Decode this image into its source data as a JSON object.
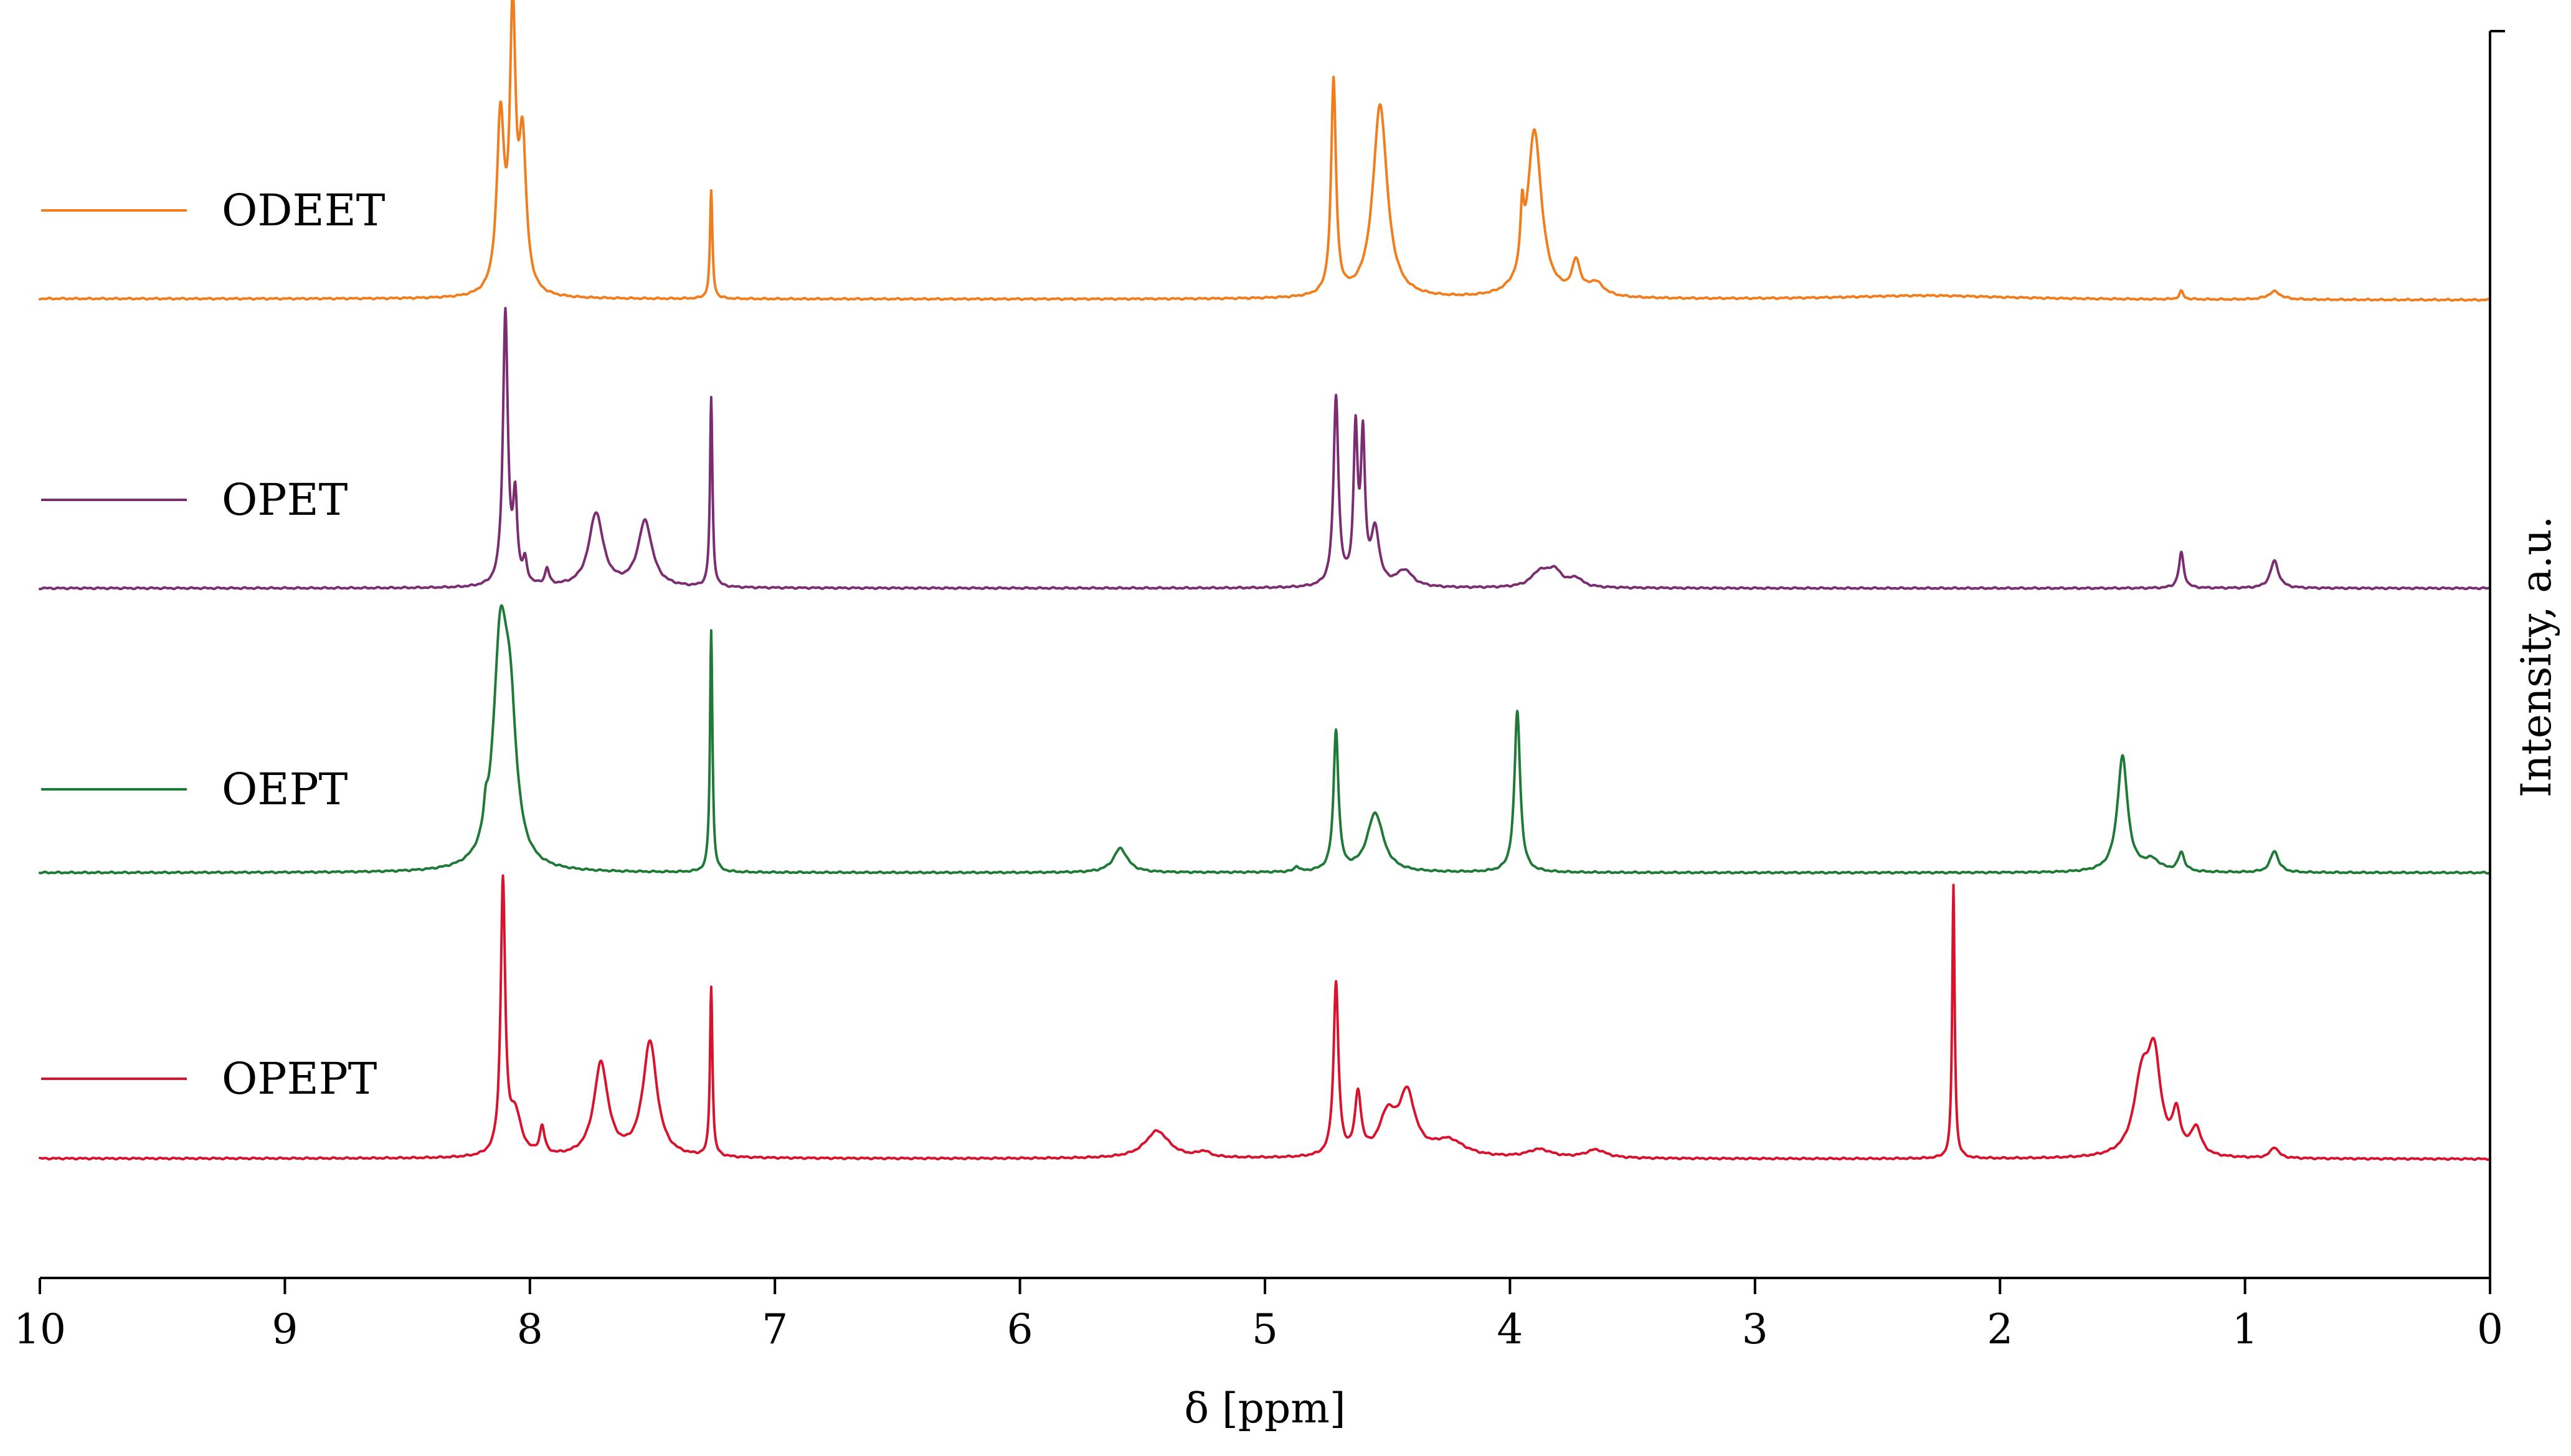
{
  "chart_data": {
    "type": "line",
    "title": "",
    "xlabel": "δ [ppm]",
    "ylabel": "Intensity, a.u.",
    "xlim": [
      10,
      0
    ],
    "x_reversed": true,
    "x_ticks": [
      "10",
      "9",
      "8",
      "7",
      "6",
      "5",
      "4",
      "3",
      "2",
      "1",
      "0"
    ],
    "y_ticks": [],
    "grid": false,
    "stacked_offset": true,
    "legend_position": "left, beside each trace",
    "series": [
      {
        "name": "ODEET",
        "color": "#f07d1e",
        "baseline_slope": 0.005,
        "peaks": [
          {
            "x": 8.12,
            "h": 0.64,
            "w": 0.018
          },
          {
            "x": 8.07,
            "h": 1.0,
            "w": 0.014
          },
          {
            "x": 8.03,
            "h": 0.54,
            "w": 0.018
          },
          {
            "x": 7.26,
            "h": 0.4,
            "w": 0.006
          },
          {
            "x": 4.72,
            "h": 0.8,
            "w": 0.012
          },
          {
            "x": 4.53,
            "h": 0.72,
            "w": 0.035
          },
          {
            "x": 3.95,
            "h": 0.2,
            "w": 0.008
          },
          {
            "x": 3.9,
            "h": 0.62,
            "w": 0.035
          },
          {
            "x": 3.73,
            "h": 0.12,
            "w": 0.02
          },
          {
            "x": 3.65,
            "h": 0.05,
            "w": 0.04
          },
          {
            "x": 2.3,
            "h": 0.015,
            "w": 0.4
          },
          {
            "x": 1.26,
            "h": 0.03,
            "w": 0.01
          },
          {
            "x": 0.88,
            "h": 0.03,
            "w": 0.03
          }
        ]
      },
      {
        "name": "OPET",
        "color": "#7b2d72",
        "baseline_slope": 0.0,
        "peaks": [
          {
            "x": 8.1,
            "h": 1.0,
            "w": 0.012
          },
          {
            "x": 8.06,
            "h": 0.3,
            "w": 0.01
          },
          {
            "x": 8.02,
            "h": 0.08,
            "w": 0.01
          },
          {
            "x": 7.93,
            "h": 0.06,
            "w": 0.01
          },
          {
            "x": 7.73,
            "h": 0.27,
            "w": 0.035
          },
          {
            "x": 7.53,
            "h": 0.24,
            "w": 0.035
          },
          {
            "x": 7.26,
            "h": 0.69,
            "w": 0.006
          },
          {
            "x": 4.71,
            "h": 0.69,
            "w": 0.012
          },
          {
            "x": 4.63,
            "h": 0.55,
            "w": 0.01
          },
          {
            "x": 4.6,
            "h": 0.52,
            "w": 0.01
          },
          {
            "x": 4.55,
            "h": 0.2,
            "w": 0.02
          },
          {
            "x": 4.43,
            "h": 0.06,
            "w": 0.04
          },
          {
            "x": 3.88,
            "h": 0.05,
            "w": 0.04
          },
          {
            "x": 3.82,
            "h": 0.06,
            "w": 0.04
          },
          {
            "x": 3.73,
            "h": 0.03,
            "w": 0.03
          },
          {
            "x": 1.26,
            "h": 0.13,
            "w": 0.012
          },
          {
            "x": 0.88,
            "h": 0.1,
            "w": 0.02
          }
        ]
      },
      {
        "name": "OEPT",
        "color": "#1f7a38",
        "baseline_slope": 0.0,
        "peaks": [
          {
            "x": 8.18,
            "h": 0.08,
            "w": 0.01
          },
          {
            "x": 8.12,
            "h": 0.82,
            "w": 0.035
          },
          {
            "x": 8.08,
            "h": 0.45,
            "w": 0.03
          },
          {
            "x": 7.26,
            "h": 0.9,
            "w": 0.006
          },
          {
            "x": 5.59,
            "h": 0.09,
            "w": 0.035
          },
          {
            "x": 4.87,
            "h": 0.02,
            "w": 0.01
          },
          {
            "x": 4.71,
            "h": 0.52,
            "w": 0.012
          },
          {
            "x": 4.55,
            "h": 0.22,
            "w": 0.04
          },
          {
            "x": 3.97,
            "h": 0.6,
            "w": 0.014
          },
          {
            "x": 1.5,
            "h": 0.43,
            "w": 0.025
          },
          {
            "x": 1.38,
            "h": 0.04,
            "w": 0.04
          },
          {
            "x": 1.26,
            "h": 0.07,
            "w": 0.015
          },
          {
            "x": 0.88,
            "h": 0.08,
            "w": 0.02
          }
        ]
      },
      {
        "name": "OPEPT",
        "color": "#d8132d",
        "baseline_slope": 0.002,
        "peaks": [
          {
            "x": 8.11,
            "h": 0.99,
            "w": 0.011
          },
          {
            "x": 8.06,
            "h": 0.15,
            "w": 0.03
          },
          {
            "x": 7.95,
            "h": 0.1,
            "w": 0.012
          },
          {
            "x": 7.71,
            "h": 0.34,
            "w": 0.035
          },
          {
            "x": 7.51,
            "h": 0.42,
            "w": 0.035
          },
          {
            "x": 7.26,
            "h": 0.62,
            "w": 0.006
          },
          {
            "x": 5.44,
            "h": 0.1,
            "w": 0.06
          },
          {
            "x": 5.25,
            "h": 0.02,
            "w": 0.03
          },
          {
            "x": 4.71,
            "h": 0.63,
            "w": 0.012
          },
          {
            "x": 4.62,
            "h": 0.22,
            "w": 0.015
          },
          {
            "x": 4.5,
            "h": 0.14,
            "w": 0.04
          },
          {
            "x": 4.42,
            "h": 0.22,
            "w": 0.04
          },
          {
            "x": 4.25,
            "h": 0.06,
            "w": 0.08
          },
          {
            "x": 3.88,
            "h": 0.03,
            "w": 0.06
          },
          {
            "x": 3.65,
            "h": 0.03,
            "w": 0.05
          },
          {
            "x": 2.19,
            "h": 1.0,
            "w": 0.006
          },
          {
            "x": 1.42,
            "h": 0.28,
            "w": 0.04
          },
          {
            "x": 1.37,
            "h": 0.32,
            "w": 0.03
          },
          {
            "x": 1.28,
            "h": 0.14,
            "w": 0.02
          },
          {
            "x": 1.2,
            "h": 0.1,
            "w": 0.025
          },
          {
            "x": 0.88,
            "h": 0.04,
            "w": 0.02
          }
        ]
      }
    ]
  }
}
